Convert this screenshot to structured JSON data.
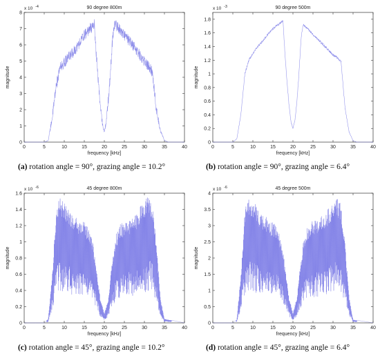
{
  "chart_data": [
    {
      "type": "line",
      "title": "90 degree 800m",
      "xlabel": "frequency [kHz]",
      "ylabel": "magnitude",
      "xlim": [
        0,
        40
      ],
      "ylim": [
        0,
        8
      ],
      "y_multiplier": "x 10",
      "y_exponent": "-4",
      "xticks": [
        "0",
        "5",
        "10",
        "15",
        "20",
        "25",
        "30",
        "35",
        "40"
      ],
      "yticks": [
        "0",
        "1",
        "2",
        "3",
        "4",
        "5",
        "6",
        "7",
        "8"
      ],
      "color": "#7a7ae6",
      "envelope": {
        "x": [
          0,
          5,
          6,
          7,
          8,
          9,
          10,
          11,
          12,
          13,
          14,
          15,
          16,
          17,
          17.5,
          18,
          18.5,
          19,
          19.5,
          20,
          20.5,
          21,
          21.5,
          22,
          22.5,
          23,
          24,
          25,
          26,
          27,
          28,
          29,
          30,
          31,
          32,
          33,
          34,
          35,
          36,
          40
        ],
        "y": [
          0,
          0,
          0.1,
          1.5,
          3.5,
          4.6,
          4.9,
          5.2,
          5.5,
          5.8,
          6.2,
          6.6,
          6.9,
          7.1,
          7.3,
          5.4,
          3.8,
          2.2,
          1.2,
          0.6,
          1.3,
          2.6,
          4.2,
          6.2,
          7.3,
          7.2,
          6.9,
          6.6,
          6.3,
          6.0,
          5.7,
          5.3,
          5.0,
          4.7,
          4.3,
          2.0,
          0.7,
          0.1,
          0,
          0
        ]
      },
      "ripple": 0.7
    },
    {
      "type": "line",
      "title": "90 degree 500m",
      "xlabel": "frequency [kHz]",
      "ylabel": "magnitude",
      "xlim": [
        0,
        40
      ],
      "ylim": [
        0,
        1.9
      ],
      "y_multiplier": "x 10",
      "y_exponent": "-3",
      "xticks": [
        "0",
        "5",
        "10",
        "15",
        "20",
        "25",
        "30",
        "35",
        "40"
      ],
      "yticks": [
        "0",
        "0.2",
        "0.4",
        "0.6",
        "0.8",
        "1",
        "1.2",
        "1.4",
        "1.6",
        "1.8"
      ],
      "color": "#7a7ae6",
      "envelope": {
        "x": [
          0,
          5,
          6,
          7,
          8,
          9,
          10,
          11,
          12,
          13,
          14,
          15,
          16,
          17,
          17.5,
          18,
          18.5,
          19,
          19.5,
          20,
          20.5,
          21,
          21.5,
          22,
          22.5,
          23,
          24,
          25,
          26,
          27,
          28,
          29,
          30,
          31,
          32,
          33,
          34,
          35,
          36,
          40
        ],
        "y": [
          0,
          0,
          0.05,
          0.4,
          1.0,
          1.2,
          1.3,
          1.38,
          1.45,
          1.52,
          1.6,
          1.66,
          1.71,
          1.75,
          1.78,
          1.3,
          0.9,
          0.55,
          0.3,
          0.2,
          0.32,
          0.6,
          1.0,
          1.5,
          1.72,
          1.7,
          1.64,
          1.58,
          1.52,
          1.46,
          1.4,
          1.34,
          1.28,
          1.24,
          1.18,
          0.5,
          0.15,
          0.02,
          0,
          0
        ]
      },
      "ripple": 0.15
    },
    {
      "type": "line",
      "title": "45 degree 800m",
      "xlabel": "frequency [kHz]",
      "ylabel": "magnitude",
      "xlim": [
        0,
        40
      ],
      "ylim": [
        0,
        1.6
      ],
      "y_multiplier": "x 10",
      "y_exponent": "-6",
      "xticks": [
        "0",
        "5",
        "10",
        "15",
        "20",
        "25",
        "30",
        "35",
        "40"
      ],
      "yticks": [
        "0",
        "0.2",
        "0.4",
        "0.6",
        "0.8",
        "1",
        "1.2",
        "1.4",
        "1.6"
      ],
      "color": "#7a7ae6",
      "envelope": {
        "x": [
          0,
          5,
          6,
          7,
          8,
          9,
          10,
          11,
          12,
          13,
          14,
          15,
          16,
          17,
          18,
          19,
          20,
          21,
          22,
          23,
          24,
          25,
          26,
          27,
          28,
          29,
          30,
          31,
          32,
          33,
          34,
          35,
          40
        ],
        "y": [
          0,
          0,
          0.05,
          0.6,
          1.45,
          1.57,
          1.5,
          1.42,
          1.35,
          1.3,
          1.25,
          1.25,
          1.2,
          1.05,
          0.7,
          0.3,
          0.12,
          0.3,
          0.8,
          1.1,
          1.22,
          1.25,
          1.25,
          1.3,
          1.35,
          1.45,
          1.5,
          1.57,
          1.5,
          1.0,
          0.3,
          0.05,
          0
        ]
      },
      "ripple": 1.0
    },
    {
      "type": "line",
      "title": "45 degree 500m",
      "xlabel": "frequency [kHz]",
      "ylabel": "magnitude",
      "xlim": [
        0,
        40
      ],
      "ylim": [
        0,
        4
      ],
      "y_multiplier": "x 10",
      "y_exponent": "-6",
      "xticks": [
        "0",
        "5",
        "10",
        "15",
        "20",
        "25",
        "30",
        "35",
        "40"
      ],
      "yticks": [
        "0",
        "0.5",
        "1",
        "1.5",
        "2",
        "2.5",
        "3",
        "3.5",
        "4"
      ],
      "color": "#7a7ae6",
      "envelope": {
        "x": [
          0,
          5,
          6,
          7,
          8,
          9,
          10,
          11,
          12,
          13,
          14,
          15,
          16,
          17,
          18,
          19,
          20,
          21,
          22,
          23,
          24,
          25,
          26,
          27,
          28,
          29,
          30,
          31,
          32,
          33,
          34,
          35,
          40
        ],
        "y": [
          0,
          0,
          0.1,
          1.5,
          3.5,
          3.9,
          3.8,
          3.6,
          3.4,
          3.3,
          3.2,
          3.1,
          3.0,
          2.6,
          1.8,
          0.8,
          0.3,
          0.8,
          2.0,
          2.8,
          3.1,
          3.15,
          3.2,
          3.3,
          3.4,
          3.55,
          3.7,
          3.85,
          3.7,
          2.5,
          0.8,
          0.1,
          0
        ]
      },
      "ripple": 1.0
    }
  ],
  "captions": [
    {
      "letter": "(a)",
      "text": " rotation angle = 90°, grazing angle = 10.2°"
    },
    {
      "letter": "(b)",
      "text": " rotation angle = 90°, grazing angle = 6.4°"
    },
    {
      "letter": "(c)",
      "text": " rotation angle = 45°, grazing angle = 10.2°"
    },
    {
      "letter": "(d)",
      "text": " rotation angle = 45°, grazing angle = 6.4°"
    }
  ]
}
